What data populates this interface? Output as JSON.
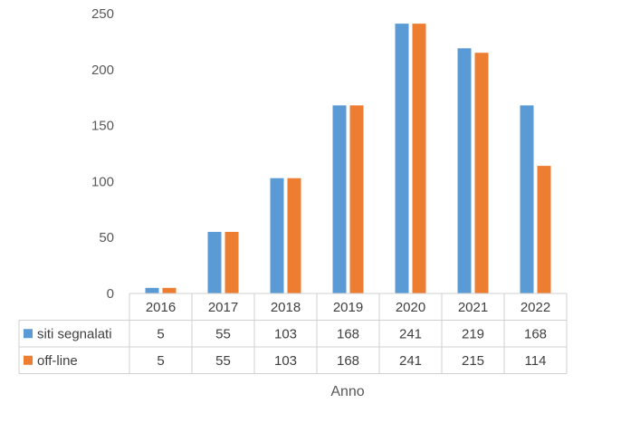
{
  "chart_data": {
    "type": "bar",
    "categories": [
      "2016",
      "2017",
      "2018",
      "2019",
      "2020",
      "2021",
      "2022"
    ],
    "series": [
      {
        "name": "siti segnalati",
        "color": "#5B9BD5",
        "values": [
          5,
          55,
          103,
          168,
          241,
          219,
          168
        ]
      },
      {
        "name": "off-line",
        "color": "#ED7D31",
        "values": [
          5,
          55,
          103,
          168,
          241,
          215,
          114
        ]
      }
    ],
    "yticks": [
      "0",
      "50",
      "100",
      "150",
      "200",
      "250"
    ],
    "ylim": [
      0,
      250
    ],
    "xlabel": "Anno",
    "ylabel": "",
    "grid": false,
    "legend": "data-table"
  }
}
